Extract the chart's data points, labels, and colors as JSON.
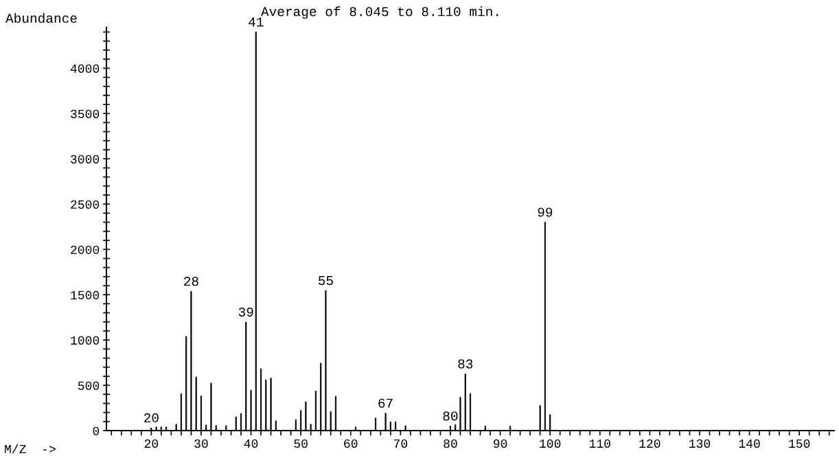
{
  "chart_data": {
    "type": "bar",
    "title": "Average of 8.045 to 8.110 min.",
    "xlabel": "M/Z  ->",
    "ylabel": "Abundance",
    "color": "#000000",
    "x": [
      20,
      21,
      22,
      23,
      25,
      26,
      27,
      28,
      29,
      30,
      31,
      32,
      33,
      35,
      37,
      38,
      39,
      40,
      41,
      42,
      43,
      44,
      45,
      49,
      50,
      51,
      52,
      53,
      54,
      55,
      56,
      57,
      61,
      65,
      67,
      68,
      69,
      71,
      80,
      81,
      82,
      83,
      84,
      87,
      92,
      98,
      99,
      100
    ],
    "values": [
      30,
      40,
      40,
      40,
      70,
      408,
      1040,
      1537,
      592,
      383,
      63,
      524,
      55,
      55,
      150,
      189,
      1198,
      446,
      4400,
      683,
      560,
      580,
      108,
      121,
      222,
      318,
      70,
      436,
      744,
      1546,
      209,
      378,
      40,
      139,
      192,
      96,
      96,
      53,
      50,
      66,
      368,
      625,
      408,
      50,
      50,
      277,
      2300,
      176
    ],
    "annotations": [
      {
        "text": "20",
        "x": 20,
        "y": 30
      },
      {
        "text": "28",
        "x": 28,
        "y": 1537
      },
      {
        "text": "39",
        "x": 39,
        "y": 1198
      },
      {
        "text": "41",
        "x": 41,
        "y": 4400
      },
      {
        "text": "55",
        "x": 55,
        "y": 1546
      },
      {
        "text": "67",
        "x": 67,
        "y": 192
      },
      {
        "text": "80",
        "x": 80,
        "y": 50
      },
      {
        "text": "83",
        "x": 83,
        "y": 625
      },
      {
        "text": "99",
        "x": 99,
        "y": 2300
      }
    ],
    "xlim": [
      11,
      157
    ],
    "ylim": [
      0,
      4450
    ],
    "xticks": [
      {
        "value": 12,
        "label": null
      },
      {
        "value": 14,
        "label": null
      },
      {
        "value": 16,
        "label": null
      },
      {
        "value": 18,
        "label": null
      },
      20,
      {
        "value": 22,
        "label": null
      },
      {
        "value": 24,
        "label": null
      },
      {
        "value": 26,
        "label": null
      },
      {
        "value": 28,
        "label": null
      },
      30,
      {
        "value": 32,
        "label": null
      },
      {
        "value": 34,
        "label": null
      },
      {
        "value": 36,
        "label": null
      },
      {
        "value": 38,
        "label": null
      },
      40,
      {
        "value": 42,
        "label": null
      },
      {
        "value": 44,
        "label": null
      },
      {
        "value": 46,
        "label": null
      },
      {
        "value": 48,
        "label": null
      },
      50,
      {
        "value": 52,
        "label": null
      },
      {
        "value": 54,
        "label": null
      },
      {
        "value": 56,
        "label": null
      },
      {
        "value": 58,
        "label": null
      },
      60,
      {
        "value": 62,
        "label": null
      },
      {
        "value": 64,
        "label": null
      },
      {
        "value": 66,
        "label": null
      },
      {
        "value": 68,
        "label": null
      },
      70,
      {
        "value": 72,
        "label": null
      },
      {
        "value": 74,
        "label": null
      },
      {
        "value": 76,
        "label": null
      },
      {
        "value": 78,
        "label": null
      },
      80,
      {
        "value": 82,
        "label": null
      },
      {
        "value": 84,
        "label": null
      },
      {
        "value": 86,
        "label": null
      },
      {
        "value": 88,
        "label": null
      },
      90,
      {
        "value": 92,
        "label": null
      },
      {
        "value": 94,
        "label": null
      },
      {
        "value": 96,
        "label": null
      },
      {
        "value": 98,
        "label": null
      },
      100,
      {
        "value": 102,
        "label": null
      },
      {
        "value": 104,
        "label": null
      },
      {
        "value": 106,
        "label": null
      },
      {
        "value": 108,
        "label": null
      },
      110,
      {
        "value": 112,
        "label": null
      },
      {
        "value": 114,
        "label": null
      },
      {
        "value": 116,
        "label": null
      },
      {
        "value": 118,
        "label": null
      },
      120,
      {
        "value": 122,
        "label": null
      },
      {
        "value": 124,
        "label": null
      },
      {
        "value": 126,
        "label": null
      },
      {
        "value": 128,
        "label": null
      },
      130,
      {
        "value": 132,
        "label": null
      },
      {
        "value": 134,
        "label": null
      },
      {
        "value": 136,
        "label": null
      },
      {
        "value": 138,
        "label": null
      },
      140,
      {
        "value": 142,
        "label": null
      },
      {
        "value": 144,
        "label": null
      },
      {
        "value": 146,
        "label": null
      },
      {
        "value": 148,
        "label": null
      },
      150,
      {
        "value": 152,
        "label": null
      },
      {
        "value": 154,
        "label": null
      },
      {
        "value": 156,
        "label": null
      }
    ],
    "yticks": [
      0,
      {
        "value": 100,
        "label": null
      },
      {
        "value": 200,
        "label": null
      },
      {
        "value": 300,
        "label": null
      },
      {
        "value": 400,
        "label": null
      },
      500,
      {
        "value": 600,
        "label": null
      },
      {
        "value": 700,
        "label": null
      },
      {
        "value": 800,
        "label": null
      },
      {
        "value": 900,
        "label": null
      },
      1000,
      {
        "value": 1100,
        "label": null
      },
      {
        "value": 1200,
        "label": null
      },
      {
        "value": 1300,
        "label": null
      },
      {
        "value": 1400,
        "label": null
      },
      1500,
      {
        "value": 1600,
        "label": null
      },
      {
        "value": 1700,
        "label": null
      },
      {
        "value": 1800,
        "label": null
      },
      {
        "value": 1900,
        "label": null
      },
      2000,
      {
        "value": 2100,
        "label": null
      },
      {
        "value": 2200,
        "label": null
      },
      {
        "value": 2300,
        "label": null
      },
      {
        "value": 2400,
        "label": null
      },
      2500,
      {
        "value": 2600,
        "label": null
      },
      {
        "value": 2700,
        "label": null
      },
      {
        "value": 2800,
        "label": null
      },
      {
        "value": 2900,
        "label": null
      },
      3000,
      {
        "value": 3100,
        "label": null
      },
      {
        "value": 3200,
        "label": null
      },
      {
        "value": 3300,
        "label": null
      },
      {
        "value": 3400,
        "label": null
      },
      3500,
      {
        "value": 3600,
        "label": null
      },
      {
        "value": 3700,
        "label": null
      },
      {
        "value": 3800,
        "label": null
      },
      {
        "value": 3900,
        "label": null
      },
      4000,
      {
        "value": 4100,
        "label": null
      },
      {
        "value": 4200,
        "label": null
      },
      {
        "value": 4300,
        "label": null
      },
      {
        "value": 4400,
        "label": null
      }
    ],
    "grid": false,
    "legend": false
  }
}
